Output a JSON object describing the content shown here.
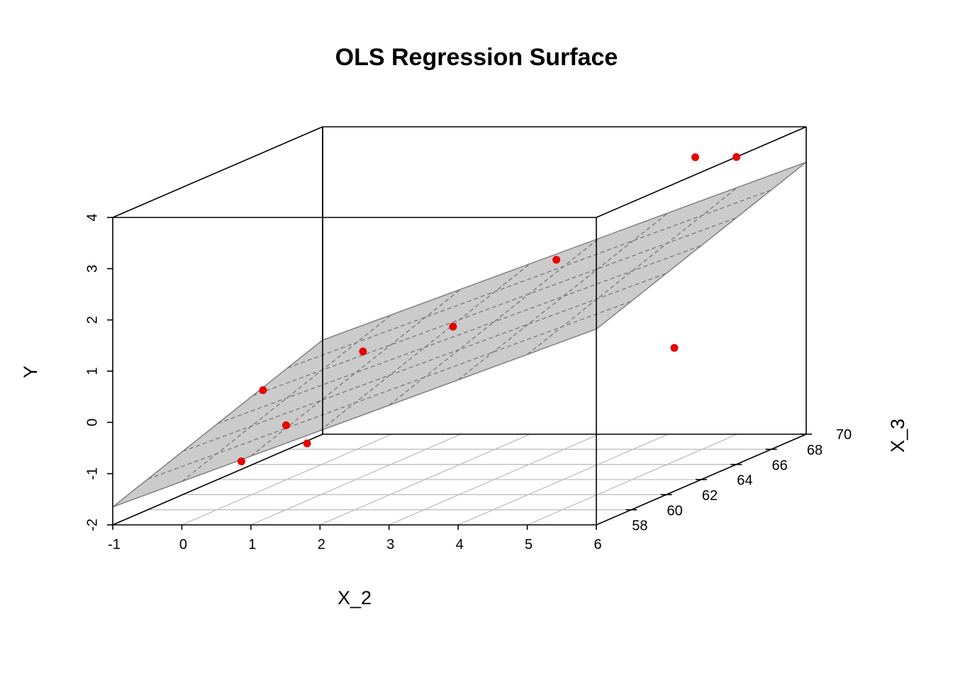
{
  "chart_data": {
    "type": "scatter3d",
    "title": "OLS Regression Surface",
    "xlabel": "X_2",
    "ylabel": "X_3",
    "zlabel": "Y",
    "xlim": [
      -1,
      6
    ],
    "ylim": [
      56,
      68
    ],
    "zlim": [
      -2,
      4
    ],
    "x_ticks": [
      "-1",
      "0",
      "1",
      "2",
      "3",
      "4",
      "5",
      "6"
    ],
    "y_ticks": [
      "58",
      "60",
      "62",
      "64",
      "66",
      "68",
      "70"
    ],
    "z_ticks": [
      "-2",
      "-1",
      "0",
      "1",
      "2",
      "3",
      "4"
    ],
    "points": [
      {
        "x": -0.15,
        "y": 60,
        "z": -1.35
      },
      {
        "x": -0.85,
        "y": 64,
        "z": -0.55
      },
      {
        "x": -0.01,
        "y": 62,
        "z": -0.94
      },
      {
        "x": 0.8,
        "y": 60,
        "z": -1.0
      },
      {
        "x": 0.09,
        "y": 66,
        "z": -0.09
      },
      {
        "x": 1.9,
        "y": 64,
        "z": 0.69
      },
      {
        "x": 2.89,
        "y": 66,
        "z": 1.7
      },
      {
        "x": 5.61,
        "y": 62,
        "z": 0.57
      },
      {
        "x": 4.9,
        "y": 66,
        "z": 3.7
      },
      {
        "x": 4.99,
        "y": 68,
        "z": 3.41
      }
    ],
    "plane": {
      "intercept_at_min": -1.65,
      "slope_x": 0.496,
      "slope_y": 0.124
    },
    "colors": {
      "points": "#e60000",
      "plane_fill": "#c8c8c8",
      "plane_edge": "#808080",
      "grid": "#bfbfbf"
    }
  }
}
